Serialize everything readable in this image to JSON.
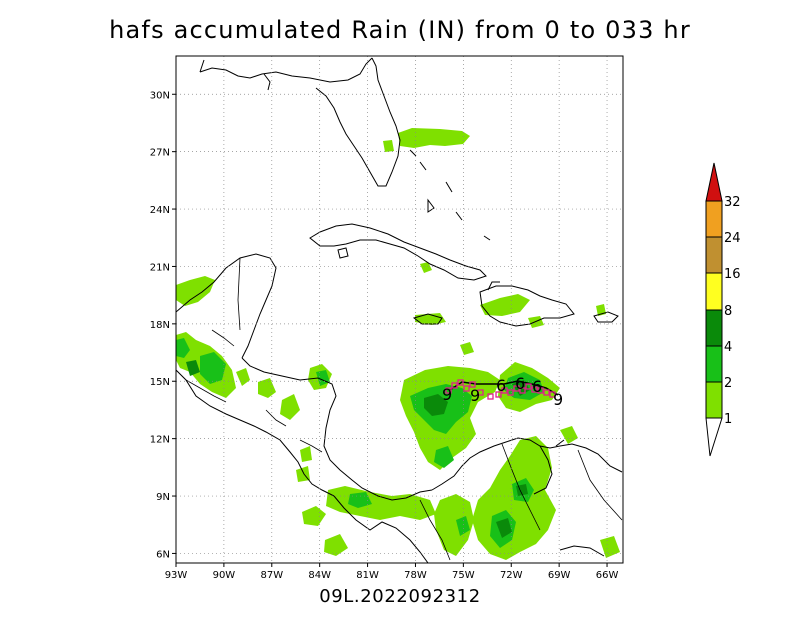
{
  "title": "hafs accumulated Rain (IN) from 0 to 033 hr",
  "footer": "09L.2022092312",
  "map": {
    "lon_range": [
      -93,
      -65
    ],
    "lat_range": [
      5.5,
      32
    ],
    "lon_ticks": [
      "93W",
      "90W",
      "87W",
      "84W",
      "81W",
      "78W",
      "75W",
      "72W",
      "69W",
      "66W"
    ],
    "lat_ticks": [
      "6N",
      "9N",
      "12N",
      "15N",
      "18N",
      "21N",
      "24N",
      "27N",
      "30N"
    ],
    "grid": "dotted"
  },
  "colorbar": {
    "labels": [
      "1",
      "2",
      "4",
      "8",
      "16",
      "24",
      "32"
    ],
    "colors": [
      "#7fe000",
      "#18c018",
      "#0a8a0a",
      "#ffff20",
      "#c09030",
      "#f0a020",
      "#d01010"
    ]
  },
  "track": {
    "color": "#e0208a",
    "symbols": [
      "9",
      "6",
      "9",
      "6",
      "6",
      "6",
      "9"
    ]
  }
}
